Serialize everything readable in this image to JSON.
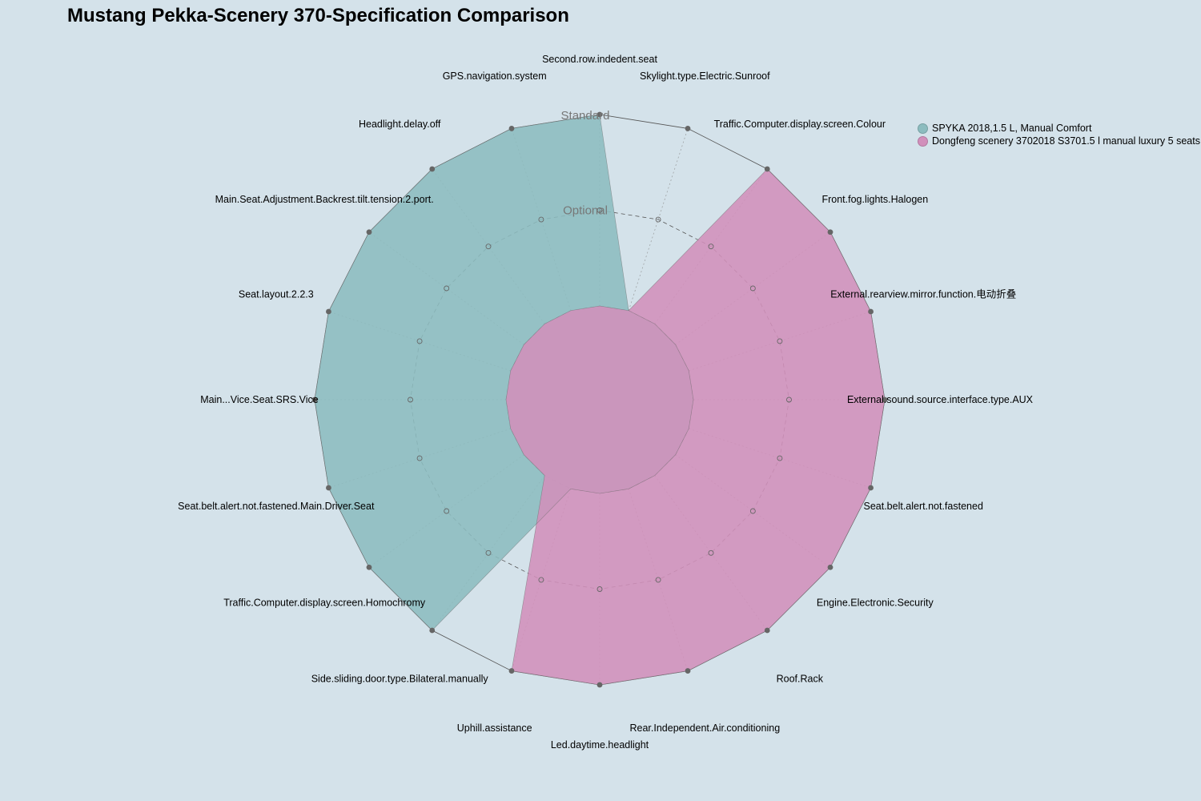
{
  "chart_data": {
    "type": "radar",
    "title": "Mustang Pekka-Scenery 370-Specification Comparison",
    "level_labels": [
      "Optional",
      "Standard"
    ],
    "level_label_text": {
      "inner": "Optional",
      "outer": "Standard"
    },
    "axes": [
      "Second.row.indedent.seat",
      "Skylight.type.Electric.Sunroof",
      "Traffic.Computer.display.screen.Colour",
      "Front.fog.lights.Halogen",
      "External.rearview.mirror.function.电动折叠",
      "External.sound.source.interface.type.AUX",
      "Seat.belt.alert.not.fastened",
      "Engine.Electronic.Security",
      "Roof.Rack",
      "Rear.Independent.Air.conditioning",
      "Led.daytime.headlight",
      "Uphill.assistance",
      "Side.sliding.door.type.Bilateral.manually",
      "Traffic.Computer.display.screen.Homochromy",
      "Seat.belt.alert.not.fastened.Main.Driver.Seat",
      "Main...Vice.Seat.SRS.Vice",
      "Seat.layout.2.2.3",
      "Main.Seat.Adjustment.Backrest.tilt.tension.2.port.",
      "Headlight.delay.off",
      "GPS.navigation.system"
    ],
    "scale": {
      "min": 0,
      "max": 2
    },
    "series": [
      {
        "name": "SPYKA 2018,1.5 L, Manual Comfort",
        "color": "#8cbcbf",
        "values": [
          2,
          0,
          0,
          0,
          0,
          0,
          0,
          0,
          0,
          0,
          0,
          0,
          2,
          2,
          2,
          2,
          2,
          2,
          2,
          2
        ]
      },
      {
        "name": "Dongfeng scenery 3702018 S3701.5 l manual luxury 5 seats",
        "color": "#d18fbb",
        "values": [
          0,
          0,
          2,
          2,
          2,
          2,
          2,
          2,
          2,
          2,
          2,
          2,
          0,
          0,
          0,
          0,
          0,
          0,
          0,
          0
        ]
      }
    ],
    "legend_position": "top-right"
  }
}
